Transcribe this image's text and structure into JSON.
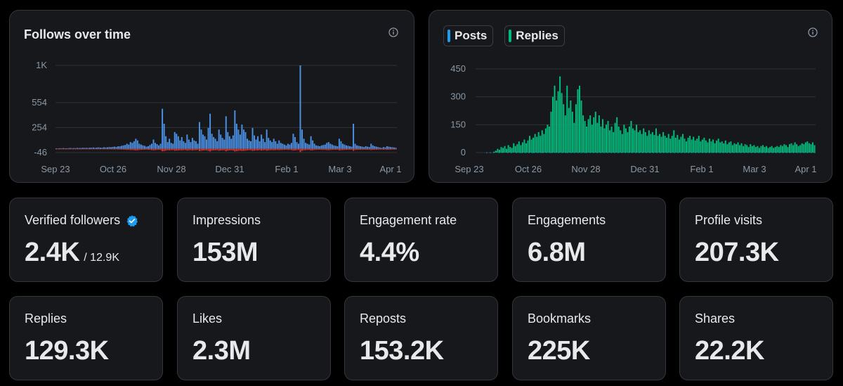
{
  "follows_chart": {
    "title": "Follows over time",
    "info_icon": "info-icon"
  },
  "posts_chart": {
    "legend": [
      {
        "label": "Posts",
        "color": "#1d9bf0"
      },
      {
        "label": "Replies",
        "color": "#00ba7c"
      }
    ],
    "info_icon": "info-icon"
  },
  "chart_data": [
    {
      "type": "bar",
      "title": "Follows over time",
      "x_tick_labels": [
        "Sep 23",
        "Oct 26",
        "Nov 28",
        "Dec 31",
        "Feb 1",
        "Mar 3",
        "Apr 1"
      ],
      "y_tick_labels": [
        "1K",
        "554",
        "254",
        "-46"
      ],
      "y_ticks": [
        1000,
        554,
        254,
        -46
      ],
      "ylim": [
        -46,
        1000
      ],
      "grid": true,
      "series": [
        {
          "name": "Follows",
          "color": "#4a8fe0",
          "values": [
            5,
            4,
            6,
            5,
            8,
            6,
            5,
            7,
            9,
            6,
            8,
            7,
            10,
            8,
            9,
            12,
            10,
            11,
            9,
            13,
            12,
            15,
            11,
            14,
            16,
            13,
            12,
            18,
            15,
            17,
            20,
            18,
            22,
            25,
            20,
            30,
            28,
            35,
            40,
            45,
            60,
            50,
            80,
            70,
            90,
            120,
            100,
            60,
            50,
            40,
            35,
            25,
            30,
            45,
            60,
            110,
            70,
            55,
            40,
            60,
            480,
            300,
            150,
            80,
            120,
            70,
            60,
            200,
            180,
            150,
            100,
            140,
            90,
            70,
            170,
            110,
            80,
            130,
            100,
            90,
            60,
            320,
            230,
            170,
            150,
            110,
            250,
            420,
            180,
            140,
            120,
            90,
            230,
            170,
            130,
            110,
            390,
            200,
            150,
            120,
            160,
            460,
            300,
            230,
            170,
            290,
            230,
            200,
            120,
            100,
            90,
            250,
            160,
            110,
            150,
            90,
            170,
            120,
            80,
            230,
            130,
            100,
            80,
            120,
            90,
            60,
            100,
            70,
            60,
            50,
            40,
            60,
            50,
            70,
            180,
            140,
            80,
            60,
            1000,
            230,
            120,
            70,
            60,
            50,
            150,
            100,
            60,
            40,
            35,
            30,
            40,
            45,
            50,
            70,
            80,
            60,
            50,
            40,
            35,
            30,
            120,
            90,
            60,
            50,
            40,
            35,
            30,
            25,
            300,
            60,
            40,
            35,
            30,
            25,
            20,
            30,
            25,
            20,
            60,
            40,
            30,
            25,
            20,
            15,
            10,
            20,
            15,
            30,
            25,
            20,
            18,
            15,
            12
          ]
        },
        {
          "name": "Unfollows",
          "color": "#e0332b",
          "values": [
            -3,
            -3,
            -4,
            -3,
            -4,
            -3,
            -3,
            -4,
            -4,
            -3,
            -4,
            -3,
            -5,
            -4,
            -4,
            -5,
            -4,
            -5,
            -4,
            -5,
            -5,
            -6,
            -5,
            -6,
            -6,
            -5,
            -5,
            -7,
            -6,
            -7,
            -7,
            -7,
            -8,
            -8,
            -7,
            -9,
            -9,
            -10,
            -11,
            -12,
            -14,
            -13,
            -16,
            -15,
            -17,
            -20,
            -18,
            -15,
            -14,
            -13,
            -12,
            -11,
            -12,
            -14,
            -16,
            -20,
            -17,
            -15,
            -13,
            -16,
            -30,
            -28,
            -22,
            -18,
            -20,
            -17,
            -16,
            -24,
            -22,
            -21,
            -18,
            -20,
            -17,
            -16,
            -22,
            -19,
            -17,
            -20,
            -18,
            -17,
            -15,
            -28,
            -24,
            -21,
            -20,
            -18,
            -26,
            -32,
            -22,
            -20,
            -19,
            -17,
            -24,
            -21,
            -19,
            -18,
            -30,
            -23,
            -20,
            -19,
            -21,
            -33,
            -28,
            -25,
            -22,
            -27,
            -25,
            -24,
            -19,
            -18,
            -17,
            -26,
            -22,
            -19,
            -21,
            -17,
            -22,
            -19,
            -16,
            -24,
            -19,
            -18,
            -16,
            -19,
            -17,
            -15,
            -18,
            -16,
            -15,
            -14,
            -13,
            -15,
            -14,
            -16,
            -22,
            -20,
            -17,
            -15,
            -40,
            -24,
            -19,
            -16,
            -15,
            -14,
            -20,
            -18,
            -15,
            -13,
            -13,
            -12,
            -13,
            -14,
            -14,
            -16,
            -17,
            -15,
            -14,
            -13,
            -13,
            -12,
            -19,
            -17,
            -15,
            -14,
            -13,
            -13,
            -12,
            -12,
            -25,
            -15,
            -13,
            -13,
            -12,
            -12,
            -11,
            -12,
            -12,
            -11,
            -15,
            -13,
            -12,
            -12,
            -11,
            -10,
            -9,
            -11,
            -10,
            -12,
            -12,
            -11,
            -10,
            -10,
            -9
          ]
        }
      ]
    },
    {
      "type": "bar",
      "x_tick_labels": [
        "Sep 23",
        "Oct 26",
        "Nov 28",
        "Dec 31",
        "Feb 1",
        "Mar 3",
        "Apr 1"
      ],
      "y_tick_labels": [
        "450",
        "300",
        "150",
        "0"
      ],
      "y_ticks": [
        450,
        300,
        150,
        0
      ],
      "ylim": [
        0,
        450
      ],
      "grid": true,
      "series": [
        {
          "name": "Posts",
          "color": "#1d9bf0",
          "values": [
            0,
            0,
            0,
            0,
            0,
            0,
            1,
            0,
            1,
            0,
            1,
            0,
            0,
            1,
            0,
            1,
            0,
            0,
            1,
            0,
            1,
            0,
            0,
            1,
            0,
            1,
            1,
            0,
            1,
            0,
            1,
            0,
            1,
            1,
            0,
            1,
            0,
            1,
            1,
            0,
            1,
            0,
            1,
            1,
            0,
            1,
            0,
            1,
            0,
            1,
            0,
            1,
            1,
            0,
            1,
            0,
            1,
            0,
            1,
            0,
            1,
            0,
            1,
            1,
            0,
            1,
            0,
            1,
            0,
            1,
            0,
            1,
            0,
            1,
            0,
            1,
            0,
            1,
            0,
            1,
            0,
            1,
            0,
            1,
            0,
            1,
            0,
            1,
            0,
            1,
            0,
            1,
            0,
            1,
            0,
            1,
            0,
            1,
            0,
            1,
            0,
            1,
            0,
            1,
            0,
            1,
            0,
            1,
            0,
            1,
            0,
            1,
            0,
            1,
            0,
            1,
            0,
            1,
            0,
            1,
            0,
            1,
            0,
            1,
            0,
            1,
            0,
            1,
            0,
            1,
            0,
            1,
            0,
            1,
            0,
            1,
            0,
            1,
            0,
            1,
            0,
            1,
            0,
            1,
            0,
            1,
            0,
            1,
            0,
            1,
            0,
            1,
            0,
            1,
            0,
            1,
            0,
            1,
            0,
            1,
            0,
            1,
            0,
            1,
            0,
            1,
            0,
            1,
            0,
            1,
            0,
            1,
            0,
            1,
            0,
            1,
            0,
            1,
            0,
            1,
            0,
            1,
            0,
            1,
            0,
            1,
            0,
            1,
            0,
            1,
            0,
            1,
            0,
            1
          ]
        },
        {
          "name": "Replies",
          "color": "#00ba7c",
          "values": [
            0,
            0,
            0,
            0,
            0,
            0,
            0,
            0,
            0,
            0,
            5,
            10,
            20,
            15,
            30,
            25,
            35,
            20,
            40,
            30,
            25,
            50,
            35,
            45,
            60,
            40,
            55,
            70,
            50,
            65,
            90,
            70,
            80,
            100,
            85,
            110,
            90,
            120,
            100,
            130,
            150,
            140,
            220,
            300,
            360,
            280,
            330,
            410,
            320,
            260,
            200,
            360,
            240,
            280,
            220,
            160,
            260,
            340,
            360,
            280,
            200,
            170,
            140,
            180,
            200,
            150,
            190,
            220,
            160,
            200,
            140,
            180,
            130,
            150,
            170,
            120,
            140,
            110,
            160,
            190,
            140,
            120,
            100,
            150,
            130,
            110,
            140,
            170,
            130,
            120,
            150,
            110,
            120,
            100,
            130,
            110,
            90,
            120,
            100,
            110,
            95,
            130,
            90,
            100,
            85,
            110,
            90,
            80,
            100,
            75,
            90,
            120,
            80,
            95,
            70,
            85,
            100,
            75,
            60,
            80,
            90,
            70,
            85,
            65,
            75,
            90,
            60,
            70,
            80,
            65,
            55,
            75,
            60,
            70,
            50,
            65,
            75,
            55,
            60,
            50,
            65,
            45,
            55,
            60,
            40,
            50,
            45,
            55,
            40,
            50,
            35,
            45,
            40,
            30,
            45,
            35,
            40,
            30,
            35,
            25,
            35,
            40,
            30,
            35,
            25,
            30,
            35,
            25,
            30,
            35,
            30,
            40,
            35,
            45,
            40,
            30,
            45,
            50,
            40,
            55,
            45,
            35,
            40,
            50,
            45,
            55,
            60,
            50,
            45,
            55,
            40
          ]
        }
      ]
    }
  ],
  "metrics": [
    {
      "label": "Verified followers",
      "value": "2.4K",
      "sub": "/ 12.9K",
      "icon": "verified-badge-icon"
    },
    {
      "label": "Impressions",
      "value": "153M"
    },
    {
      "label": "Engagement rate",
      "value": "4.4%"
    },
    {
      "label": "Engagements",
      "value": "6.8M"
    },
    {
      "label": "Profile visits",
      "value": "207.3K"
    },
    {
      "label": "Replies",
      "value": "129.3K"
    },
    {
      "label": "Likes",
      "value": "2.3M"
    },
    {
      "label": "Reposts",
      "value": "153.2K"
    },
    {
      "label": "Bookmarks",
      "value": "225K"
    },
    {
      "label": "Shares",
      "value": "22.2K"
    }
  ],
  "colors": {
    "accent": "#1d9bf0",
    "negative": "#e0332b",
    "background": "#000000",
    "panel": "#16181c"
  }
}
